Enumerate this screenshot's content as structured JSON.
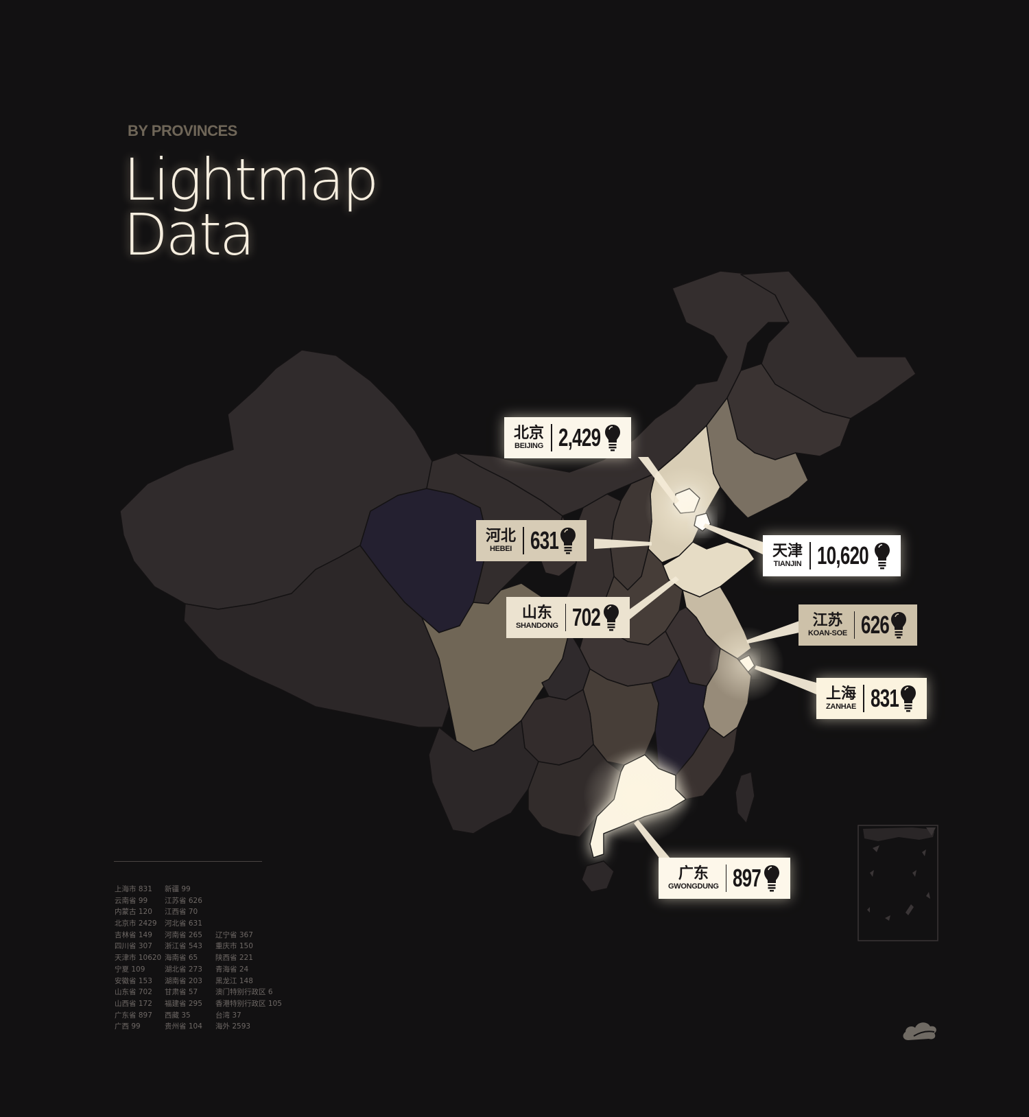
{
  "header": {
    "eyebrow": "BY PROVINCES",
    "title_line1": "Lightmap",
    "title_line2": "Data"
  },
  "callouts": [
    {
      "zh": "北京",
      "en": "BEIJING",
      "value": "2,429"
    },
    {
      "zh": "河北",
      "en": "HEBEI",
      "value": "631"
    },
    {
      "zh": "山东",
      "en": "SHANDONG",
      "value": "702"
    },
    {
      "zh": "天津",
      "en": "TIANJIN",
      "value": "10,620"
    },
    {
      "zh": "江苏",
      "en": "KOAN-SOE",
      "value": "626"
    },
    {
      "zh": "上海",
      "en": "ZANHAE",
      "value": "831"
    },
    {
      "zh": "广东",
      "en": "GWONGDUNG",
      "value": "897"
    }
  ],
  "legend": {
    "col1": [
      "上海市 831",
      "云南省 99",
      "内蒙古 120",
      "北京市 2429",
      "吉林省 149",
      "四川省 307",
      "天津市 10620",
      "宁夏 109",
      "安徽省 153",
      "山东省 702",
      "山西省 172",
      "广东省 897",
      "广西 99"
    ],
    "col2": [
      "新疆 99",
      "江苏省 626",
      "江西省 70",
      "河北省 631",
      "河南省 265",
      "浙江省 543",
      "海南省 65",
      "湖北省 273",
      "湖南省 203",
      "甘肃省 57",
      "福建省 295",
      "西藏 35",
      "贵州省 104"
    ],
    "col3": [
      "辽宁省 367",
      "重庆市 150",
      "陕西省 221",
      "青海省 24",
      "黑龙江 148",
      "澳门特别行政区 6",
      "香港特别行政区 105",
      "台湾 37",
      "海外 2593"
    ]
  },
  "colors": {
    "background": "#121112",
    "region_base": "#2e2929",
    "region_light": "#f5ecd8",
    "label_bright": "#fbf6ea",
    "label_dim": "#d7ccb6",
    "text_dark": "#1a1718"
  },
  "icons": [
    "lightbulb-icon",
    "cloud-logo-icon"
  ]
}
